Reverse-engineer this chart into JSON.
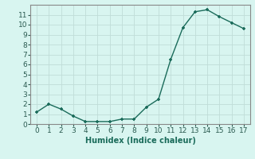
{
  "x": [
    0,
    1,
    2,
    3,
    4,
    5,
    6,
    7,
    8,
    9,
    10,
    11,
    12,
    13,
    14,
    15,
    16,
    17
  ],
  "y": [
    1.2,
    2.0,
    1.5,
    0.8,
    0.25,
    0.25,
    0.25,
    0.5,
    0.5,
    1.7,
    2.5,
    6.5,
    9.7,
    11.3,
    11.5,
    10.8,
    10.2,
    9.6
  ],
  "line_color": "#1a6b5a",
  "marker_color": "#1a6b5a",
  "bg_color": "#d8f5f0",
  "grid_color": "#c0ddd8",
  "xlabel": "Humidex (Indice chaleur)",
  "xlim": [
    -0.5,
    17.5
  ],
  "ylim": [
    0,
    12
  ],
  "xticks": [
    0,
    1,
    2,
    3,
    4,
    5,
    6,
    7,
    8,
    9,
    10,
    11,
    12,
    13,
    14,
    15,
    16,
    17
  ],
  "yticks": [
    0,
    1,
    2,
    3,
    4,
    5,
    6,
    7,
    8,
    9,
    10,
    11
  ],
  "xlabel_fontsize": 7,
  "tick_fontsize": 6.5,
  "line_width": 1.0,
  "marker_size": 3.5
}
